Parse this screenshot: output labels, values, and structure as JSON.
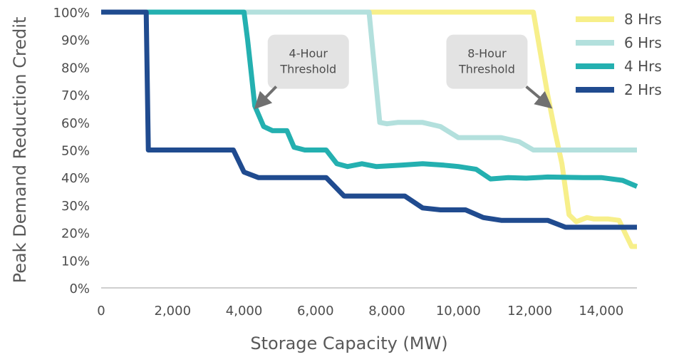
{
  "chart_data": {
    "type": "line",
    "title": "",
    "xlabel": "Storage Capacity (MW)",
    "ylabel": "Peak Demand Reduction Credit",
    "xlim": [
      0,
      15000
    ],
    "ylim": [
      0,
      1
    ],
    "x_ticks": [
      0,
      2000,
      4000,
      6000,
      8000,
      10000,
      12000,
      14000
    ],
    "x_tick_labels": [
      "0",
      "2,000",
      "4,000",
      "6,000",
      "8,000",
      "10,000",
      "12,000",
      "14,000"
    ],
    "y_ticks": [
      0,
      0.1,
      0.2,
      0.3,
      0.4,
      0.5,
      0.6,
      0.7,
      0.8,
      0.9,
      1.0
    ],
    "y_tick_labels": [
      "0%",
      "10%",
      "20%",
      "30%",
      "40%",
      "50%",
      "60%",
      "70%",
      "80%",
      "90%",
      "100%"
    ],
    "grid": false,
    "legend_position": "top-right",
    "series": [
      {
        "name": "8 Hrs",
        "color": "#f7ef8a",
        "points": [
          [
            0,
            1.0
          ],
          [
            12100,
            1.0
          ],
          [
            12300,
            0.85
          ],
          [
            12500,
            0.7
          ],
          [
            12700,
            0.57
          ],
          [
            12900,
            0.45
          ],
          [
            13100,
            0.265
          ],
          [
            13300,
            0.24
          ],
          [
            13600,
            0.255
          ],
          [
            13800,
            0.25
          ],
          [
            14200,
            0.25
          ],
          [
            14500,
            0.245
          ],
          [
            14700,
            0.19
          ],
          [
            14850,
            0.15
          ],
          [
            15000,
            0.15
          ]
        ]
      },
      {
        "name": "6 Hrs",
        "color": "#b3e0dd",
        "points": [
          [
            0,
            1.0
          ],
          [
            7500,
            1.0
          ],
          [
            7800,
            0.6
          ],
          [
            8000,
            0.595
          ],
          [
            8300,
            0.6
          ],
          [
            9000,
            0.6
          ],
          [
            9500,
            0.585
          ],
          [
            10000,
            0.545
          ],
          [
            11200,
            0.545
          ],
          [
            11700,
            0.53
          ],
          [
            12100,
            0.5
          ],
          [
            15000,
            0.5
          ]
        ]
      },
      {
        "name": "4 Hrs",
        "color": "#24b0b0",
        "points": [
          [
            0,
            1.0
          ],
          [
            4000,
            1.0
          ],
          [
            4100,
            0.9
          ],
          [
            4200,
            0.78
          ],
          [
            4300,
            0.66
          ],
          [
            4550,
            0.585
          ],
          [
            4800,
            0.57
          ],
          [
            5200,
            0.57
          ],
          [
            5400,
            0.51
          ],
          [
            5700,
            0.5
          ],
          [
            6300,
            0.5
          ],
          [
            6600,
            0.45
          ],
          [
            6900,
            0.44
          ],
          [
            7300,
            0.45
          ],
          [
            7700,
            0.44
          ],
          [
            8400,
            0.445
          ],
          [
            9000,
            0.45
          ],
          [
            9600,
            0.445
          ],
          [
            10000,
            0.44
          ],
          [
            10500,
            0.43
          ],
          [
            10900,
            0.395
          ],
          [
            11400,
            0.4
          ],
          [
            11900,
            0.398
          ],
          [
            12500,
            0.402
          ],
          [
            13500,
            0.4
          ],
          [
            14000,
            0.4
          ],
          [
            14600,
            0.39
          ],
          [
            15000,
            0.368
          ]
        ]
      },
      {
        "name": "2 Hrs",
        "color": "#204b8f",
        "points": [
          [
            0,
            1.0
          ],
          [
            1260,
            1.0
          ],
          [
            1320,
            0.5
          ],
          [
            3700,
            0.5
          ],
          [
            4000,
            0.42
          ],
          [
            4400,
            0.4
          ],
          [
            6300,
            0.4
          ],
          [
            6800,
            0.333
          ],
          [
            7500,
            0.333
          ],
          [
            8500,
            0.333
          ],
          [
            9000,
            0.29
          ],
          [
            9500,
            0.283
          ],
          [
            10200,
            0.283
          ],
          [
            10700,
            0.255
          ],
          [
            11200,
            0.245
          ],
          [
            12500,
            0.245
          ],
          [
            13000,
            0.22
          ],
          [
            15000,
            0.22
          ]
        ]
      }
    ],
    "annotations": [
      {
        "lines": [
          "4-Hour",
          "Threshold"
        ],
        "box_center": [
          5800,
          0.82
        ],
        "arrow_from": [
          4900,
          0.73
        ],
        "arrow_to": [
          4450,
          0.67
        ]
      },
      {
        "lines": [
          "8-Hour",
          "Threshold"
        ],
        "box_center": [
          10800,
          0.82
        ],
        "arrow_from": [
          11900,
          0.73
        ],
        "arrow_to": [
          12450,
          0.67
        ]
      }
    ]
  }
}
